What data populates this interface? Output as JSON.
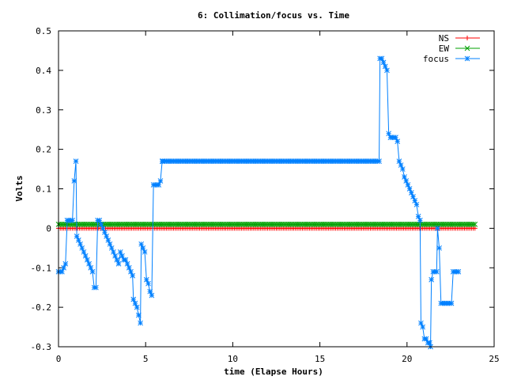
{
  "chart_data": {
    "type": "line",
    "title": "6: Collimation/focus vs. Time",
    "xlabel": "time (Elapse Hours)",
    "ylabel": "Volts",
    "xlim": [
      0,
      25
    ],
    "ylim": [
      -0.3,
      0.5
    ],
    "x_ticks": [
      0,
      5,
      10,
      15,
      20,
      25
    ],
    "x_tick_labels": [
      "0",
      "5",
      "10",
      "15",
      "20",
      "25"
    ],
    "y_ticks": [
      -0.3,
      -0.2,
      -0.1,
      0,
      0.1,
      0.2,
      0.3,
      0.4,
      0.5
    ],
    "y_tick_labels": [
      "-0.3",
      "-0.2",
      "-0.1",
      "0",
      "0.1",
      "0.2",
      "0.3",
      "0.4",
      "0.5"
    ],
    "grid": false,
    "legend_position": "top-right",
    "series": [
      {
        "name": "NS",
        "color": "#ff0000",
        "marker": "plus",
        "constant": {
          "x_start": 0,
          "x_end": 23.9,
          "step": 0.1,
          "y": 0
        }
      },
      {
        "name": "EW",
        "color": "#00a000",
        "marker": "cross",
        "constant": {
          "x_start": 0,
          "x_end": 23.9,
          "step": 0.1,
          "y": 0.01
        }
      },
      {
        "name": "focus",
        "color": "#0080ff",
        "marker": "star",
        "points": [
          [
            0,
            -0.11
          ],
          [
            0.1,
            -0.11
          ],
          [
            0.2,
            -0.11
          ],
          [
            0.3,
            -0.1
          ],
          [
            0.4,
            -0.09
          ],
          [
            0.5,
            0.02
          ],
          [
            0.6,
            0.02
          ],
          [
            0.7,
            0.02
          ],
          [
            0.8,
            0.02
          ],
          [
            0.9,
            0.12
          ],
          [
            1.0,
            0.17
          ],
          [
            1.05,
            -0.02
          ],
          [
            1.15,
            -0.03
          ],
          [
            1.25,
            -0.04
          ],
          [
            1.35,
            -0.05
          ],
          [
            1.45,
            -0.06
          ],
          [
            1.55,
            -0.07
          ],
          [
            1.65,
            -0.08
          ],
          [
            1.75,
            -0.09
          ],
          [
            1.85,
            -0.1
          ],
          [
            1.95,
            -0.11
          ],
          [
            2.05,
            -0.15
          ],
          [
            2.15,
            -0.15
          ],
          [
            2.25,
            0.02
          ],
          [
            2.35,
            0.02
          ],
          [
            2.45,
            0.01
          ],
          [
            2.55,
            0.0
          ],
          [
            2.65,
            -0.01
          ],
          [
            2.75,
            -0.02
          ],
          [
            2.85,
            -0.03
          ],
          [
            2.95,
            -0.04
          ],
          [
            3.05,
            -0.05
          ],
          [
            3.15,
            -0.06
          ],
          [
            3.25,
            -0.07
          ],
          [
            3.35,
            -0.08
          ],
          [
            3.45,
            -0.09
          ],
          [
            3.55,
            -0.06
          ],
          [
            3.65,
            -0.07
          ],
          [
            3.75,
            -0.08
          ],
          [
            3.85,
            -0.08
          ],
          [
            3.95,
            -0.09
          ],
          [
            4.05,
            -0.1
          ],
          [
            4.15,
            -0.11
          ],
          [
            4.25,
            -0.12
          ],
          [
            4.3,
            -0.18
          ],
          [
            4.4,
            -0.19
          ],
          [
            4.5,
            -0.2
          ],
          [
            4.6,
            -0.22
          ],
          [
            4.7,
            -0.24
          ],
          [
            4.75,
            -0.04
          ],
          [
            4.85,
            -0.05
          ],
          [
            4.95,
            -0.06
          ],
          [
            5.05,
            -0.13
          ],
          [
            5.15,
            -0.14
          ],
          [
            5.25,
            -0.16
          ],
          [
            5.35,
            -0.17
          ],
          [
            5.45,
            0.11
          ],
          [
            5.55,
            0.11
          ],
          [
            5.65,
            0.11
          ],
          [
            5.75,
            0.11
          ],
          [
            5.85,
            0.12
          ],
          [
            5.95,
            0.17
          ],
          {
            "flat": {
              "x_start": 6.0,
              "x_end": 18.4,
              "step": 0.1,
              "y": 0.17
            }
          },
          [
            18.45,
            0.43
          ],
          [
            18.55,
            0.43
          ],
          [
            18.65,
            0.42
          ],
          [
            18.75,
            0.41
          ],
          [
            18.85,
            0.4
          ],
          [
            18.95,
            0.24
          ],
          [
            19.05,
            0.23
          ],
          [
            19.15,
            0.23
          ],
          [
            19.25,
            0.23
          ],
          [
            19.35,
            0.23
          ],
          [
            19.45,
            0.22
          ],
          [
            19.55,
            0.17
          ],
          [
            19.65,
            0.16
          ],
          [
            19.75,
            0.15
          ],
          [
            19.85,
            0.13
          ],
          [
            19.95,
            0.12
          ],
          [
            20.05,
            0.11
          ],
          [
            20.15,
            0.1
          ],
          [
            20.25,
            0.09
          ],
          [
            20.35,
            0.08
          ],
          [
            20.45,
            0.07
          ],
          [
            20.55,
            0.06
          ],
          [
            20.65,
            0.03
          ],
          [
            20.75,
            0.02
          ],
          [
            20.8,
            -0.24
          ],
          [
            20.9,
            -0.25
          ],
          [
            21.0,
            -0.28
          ],
          [
            21.1,
            -0.28
          ],
          [
            21.2,
            -0.29
          ],
          [
            21.3,
            -0.29
          ],
          [
            21.35,
            -0.3
          ],
          [
            21.4,
            -0.13
          ],
          [
            21.5,
            -0.11
          ],
          [
            21.6,
            -0.11
          ],
          [
            21.7,
            -0.11
          ],
          [
            21.75,
            0.0
          ],
          [
            21.85,
            -0.05
          ],
          [
            21.95,
            -0.19
          ],
          [
            22.05,
            -0.19
          ],
          [
            22.15,
            -0.19
          ],
          [
            22.25,
            -0.19
          ],
          [
            22.35,
            -0.19
          ],
          [
            22.45,
            -0.19
          ],
          [
            22.55,
            -0.19
          ],
          [
            22.65,
            -0.11
          ],
          [
            22.75,
            -0.11
          ],
          [
            22.85,
            -0.11
          ],
          [
            22.95,
            -0.11
          ]
        ]
      }
    ]
  }
}
